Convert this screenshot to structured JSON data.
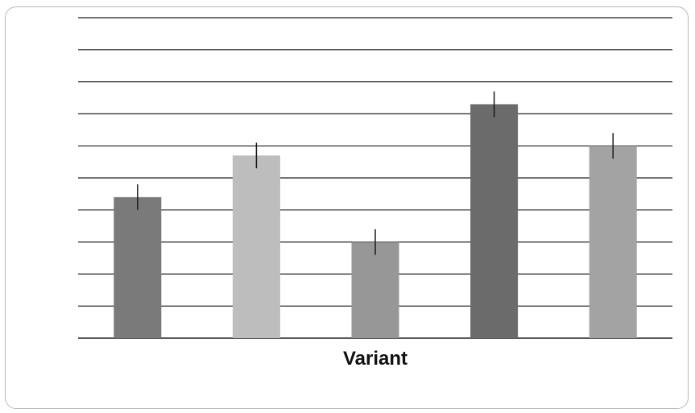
{
  "chart_data": {
    "type": "bar",
    "title": "",
    "xlabel": "Variant",
    "ylabel": "",
    "categories": [
      "",
      "",
      "",
      "",
      ""
    ],
    "values": [
      4.4,
      5.7,
      3.0,
      7.3,
      6.0
    ],
    "error": [
      0.4,
      0.4,
      0.4,
      0.4,
      0.4
    ],
    "colors": [
      "#7a7a7a",
      "#bdbdbd",
      "#979797",
      "#6b6b6b",
      "#a3a3a3"
    ],
    "ylim": [
      0,
      10
    ],
    "grid": true,
    "tick_labels_shown": false
  }
}
